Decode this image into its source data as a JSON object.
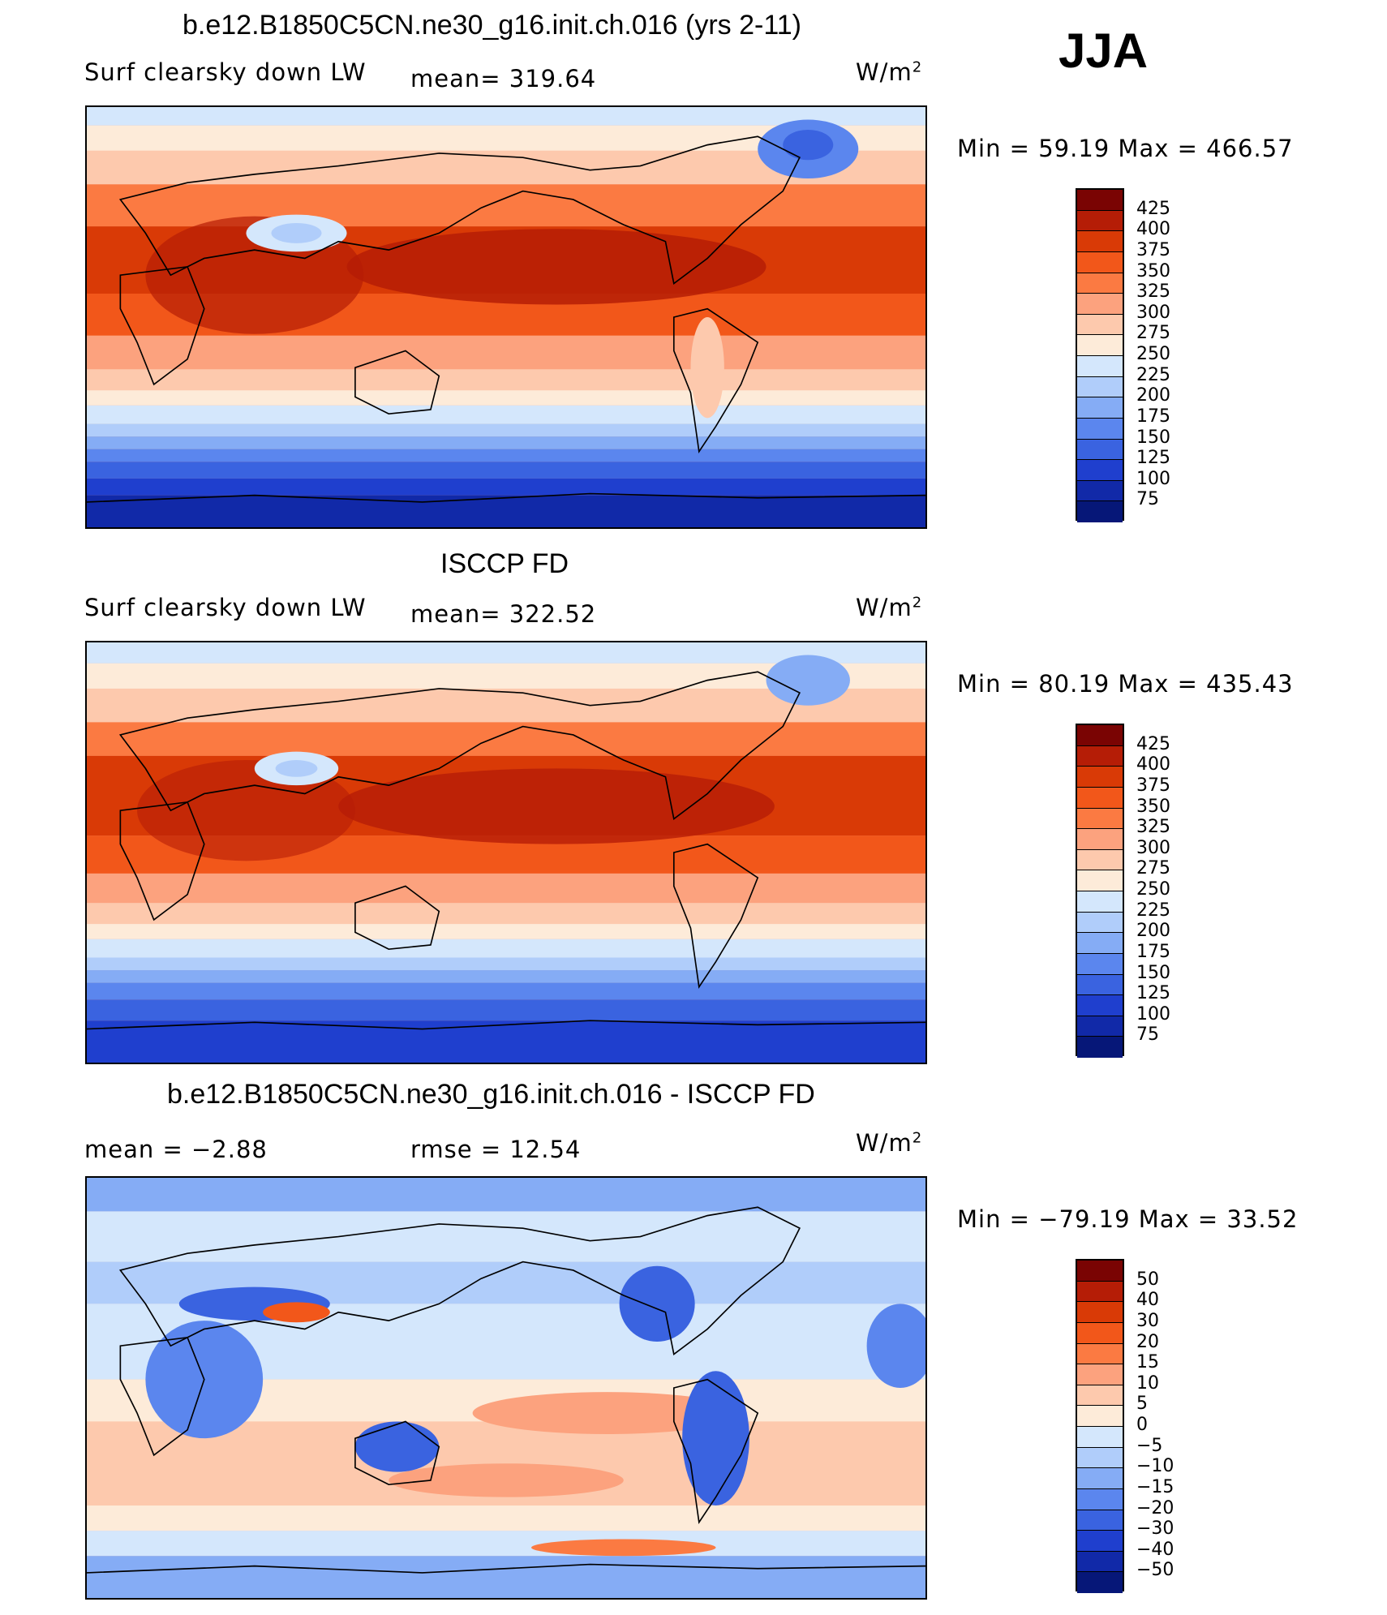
{
  "season": "JJA",
  "units": "W/m",
  "units_sup": "2",
  "panels": [
    {
      "title": "b.e12.B1850C5CN.ne30_g16.init.ch.016 (yrs 2-11)",
      "left_label": "Surf  clearsky  down  LW",
      "center_label": "mean=  319.64",
      "minmax": "Min  =    59.19  Max  =  466.57",
      "levels": [
        "425",
        "400",
        "375",
        "350",
        "325",
        "300",
        "275",
        "250",
        "225",
        "200",
        "175",
        "150",
        "125",
        "100",
        "75"
      ],
      "colors": [
        "#7a0403",
        "#b51d06",
        "#d93a06",
        "#f2571a",
        "#fb7a42",
        "#fca27e",
        "#fdc9ad",
        "#fdebd9",
        "#d4e7fc",
        "#b0cdfa",
        "#85acf5",
        "#5b86ee",
        "#3a63e0",
        "#1f3fce",
        "#1129a8",
        "#061778"
      ]
    },
    {
      "title": "ISCCP FD",
      "left_label": "Surf  clearsky  down  LW",
      "center_label": "mean=  322.52",
      "minmax": "Min  =    80.19  Max  =  435.43",
      "levels": [
        "425",
        "400",
        "375",
        "350",
        "325",
        "300",
        "275",
        "250",
        "225",
        "200",
        "175",
        "150",
        "125",
        "100",
        "75"
      ],
      "colors": [
        "#7a0403",
        "#b51d06",
        "#d93a06",
        "#f2571a",
        "#fb7a42",
        "#fca27e",
        "#fdc9ad",
        "#fdebd9",
        "#d4e7fc",
        "#b0cdfa",
        "#85acf5",
        "#5b86ee",
        "#3a63e0",
        "#1f3fce",
        "#1129a8",
        "#061778"
      ]
    },
    {
      "title": "b.e12.B1850C5CN.ne30_g16.init.ch.016 - ISCCP FD",
      "left_label": "mean  =    −2.88",
      "center_label": "rmse  =    12.54",
      "minmax": "Min  = −79.19  Max  =    33.52",
      "levels": [
        "50",
        "40",
        "30",
        "20",
        "15",
        "10",
        "5",
        "0",
        "−5",
        "−10",
        "−15",
        "−20",
        "−30",
        "−40",
        "−50"
      ],
      "colors": [
        "#7a0403",
        "#b51d06",
        "#d93a06",
        "#f2571a",
        "#fb7a42",
        "#fca27e",
        "#fdc9ad",
        "#fdebd9",
        "#d4e7fc",
        "#b0cdfa",
        "#85acf5",
        "#5b86ee",
        "#3a63e0",
        "#1f3fce",
        "#1129a8",
        "#061778"
      ]
    }
  ]
}
